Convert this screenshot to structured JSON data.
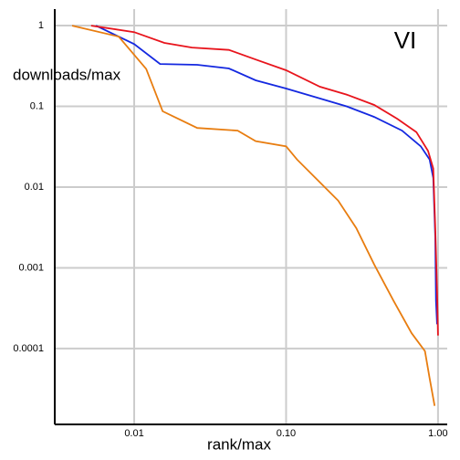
{
  "chart_data": {
    "type": "line",
    "x_label": "rank/max",
    "y_label": "downloads/max",
    "annotation": "VI",
    "annotation_color": "#1f1fa8",
    "xscale": "log",
    "yscale": "log",
    "grid": true,
    "xlim": [
      0.003,
      1.15
    ],
    "ylim": [
      1.15e-05,
      1.6
    ],
    "xticks": [
      {
        "value": 0.01,
        "label": "0.01"
      },
      {
        "value": 0.1,
        "label": "0.10"
      },
      {
        "value": 1,
        "label": "1.00"
      }
    ],
    "yticks": [
      1,
      0.1,
      0.01,
      0.001,
      0.0001
    ],
    "series": [
      {
        "color": "#1428e0",
        "x": [
          0.0056,
          0.01,
          0.0148,
          0.026,
          0.042,
          0.063,
          0.1,
          0.167,
          0.25,
          0.38,
          0.58,
          0.77,
          0.88,
          0.93,
          0.96,
          0.97,
          0.986
        ],
        "values": [
          1.0,
          0.59,
          0.335,
          0.327,
          0.295,
          0.21,
          0.166,
          0.125,
          0.1,
          0.074,
          0.05,
          0.032,
          0.022,
          0.013,
          0.0024,
          0.00039,
          0.0002
        ]
      },
      {
        "color": "#e8141c",
        "x": [
          0.0052,
          0.01,
          0.0158,
          0.024,
          0.042,
          0.063,
          0.1,
          0.167,
          0.25,
          0.38,
          0.54,
          0.72,
          0.86,
          0.93,
          0.96,
          0.986,
          1.0
        ],
        "values": [
          1.0,
          0.83,
          0.61,
          0.535,
          0.5,
          0.38,
          0.28,
          0.175,
          0.14,
          0.104,
          0.07,
          0.048,
          0.028,
          0.017,
          0.0031,
          0.0005,
          0.000145
        ]
      },
      {
        "color": "#e87d10",
        "x": [
          0.0039,
          0.0079,
          0.012,
          0.0154,
          0.026,
          0.048,
          0.063,
          0.1,
          0.118,
          0.156,
          0.22,
          0.29,
          0.38,
          0.51,
          0.67,
          0.82,
          0.88,
          0.95
        ],
        "values": [
          1.0,
          0.73,
          0.29,
          0.087,
          0.054,
          0.05,
          0.037,
          0.032,
          0.022,
          0.013,
          0.0068,
          0.0031,
          0.0011,
          0.00039,
          0.000155,
          9.3e-05,
          4.3e-05,
          1.95e-05
        ]
      }
    ]
  }
}
